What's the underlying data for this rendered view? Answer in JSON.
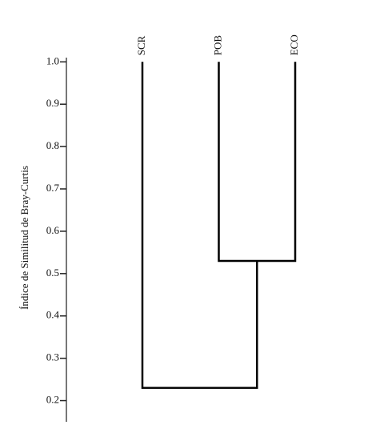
{
  "chart_data": {
    "type": "dendrogram",
    "ylabel": "Índice de Similitud de Bray-Curtis",
    "leaves": [
      "SCR",
      "POB",
      "ECO"
    ],
    "leaf_height": 1,
    "merges": [
      {
        "left": 1,
        "right": 2,
        "height": 0.53
      },
      {
        "left": 0,
        "right": 3,
        "height": 0.23
      }
    ],
    "ylim": [
      0.15,
      1.01
    ],
    "yticks": [
      {
        "value": 1,
        "label": "1.0"
      },
      0.9,
      0.8,
      0.7,
      0.6,
      0.5,
      0.4,
      0.3,
      0.2
    ]
  }
}
